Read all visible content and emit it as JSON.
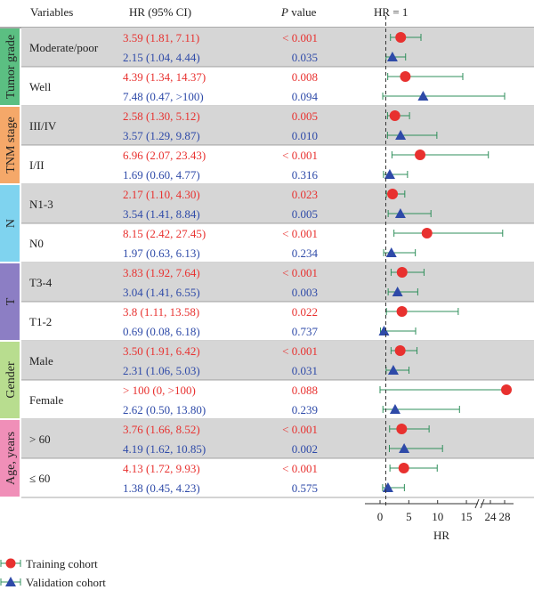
{
  "chart_data": {
    "type": "forest",
    "header": {
      "variables": "Variables",
      "hr": "HR (95% CI)",
      "p_prefix": "P",
      "p_suffix": " value",
      "ref": "HR = 1"
    },
    "x_axis": {
      "label": "HR",
      "ticks_left": [
        "0",
        "5",
        "10",
        "15"
      ],
      "ticks_right": [
        "24",
        "28"
      ],
      "segment_left": [
        0,
        17
      ],
      "segment_right": [
        22,
        30
      ],
      "reference_line": 1
    },
    "series": [
      {
        "name": "Training cohort",
        "color": "#e8312f",
        "marker": "circle"
      },
      {
        "name": "Validation cohort",
        "color": "#2e4aa8",
        "marker": "triangle"
      }
    ],
    "groups": [
      {
        "label": "Tumor grade",
        "color": "#5bbf82",
        "subgroups": [
          {
            "label": "Moderate/poor",
            "rows": [
              {
                "series": "Training cohort",
                "text": "3.59 (1.81, 7.11)",
                "p": "< 0.001",
                "hr": 3.59,
                "lo": 1.81,
                "hi": 7.11
              },
              {
                "series": "Validation cohort",
                "text": "2.15 (1.04, 4.44)",
                "p": "0.035",
                "hr": 2.15,
                "lo": 1.04,
                "hi": 4.44
              }
            ]
          },
          {
            "label": "Well",
            "rows": [
              {
                "series": "Training cohort",
                "text": "4.39 (1.34, 14.37)",
                "p": "0.008",
                "hr": 4.39,
                "lo": 1.34,
                "hi": 14.37
              },
              {
                "series": "Validation cohort",
                "text": "7.48 (0.47, >100)",
                "p": "0.094",
                "hr": 7.48,
                "lo": 0.47,
                "hi": 28
              }
            ]
          }
        ]
      },
      {
        "label": "TNM stage",
        "color": "#f5a869",
        "subgroups": [
          {
            "label": "III/IV",
            "rows": [
              {
                "series": "Training cohort",
                "text": "2.58 (1.30, 5.12)",
                "p": "0.005",
                "hr": 2.58,
                "lo": 1.3,
                "hi": 5.12
              },
              {
                "series": "Validation cohort",
                "text": "3.57 (1.29, 9.87)",
                "p": "0.010",
                "hr": 3.57,
                "lo": 1.29,
                "hi": 9.87
              }
            ]
          },
          {
            "label": "I/II",
            "rows": [
              {
                "series": "Training cohort",
                "text": "6.96 (2.07, 23.43)",
                "p": "< 0.001",
                "hr": 6.96,
                "lo": 2.07,
                "hi": 23.43
              },
              {
                "series": "Validation cohort",
                "text": "1.69 (0.60, 4.77)",
                "p": "0.316",
                "hr": 1.69,
                "lo": 0.6,
                "hi": 4.77
              }
            ]
          }
        ]
      },
      {
        "label": "N",
        "color": "#7fd3ef",
        "subgroups": [
          {
            "label": "N1-3",
            "rows": [
              {
                "series": "Training cohort",
                "text": "2.17 (1.10, 4.30)",
                "p": "0.023",
                "hr": 2.17,
                "lo": 1.1,
                "hi": 4.3
              },
              {
                "series": "Validation cohort",
                "text": "3.54 (1.41, 8.84)",
                "p": "0.005",
                "hr": 3.54,
                "lo": 1.41,
                "hi": 8.84
              }
            ]
          },
          {
            "label": "N0",
            "rows": [
              {
                "series": "Training cohort",
                "text": "8.15 (2.42, 27.45)",
                "p": "< 0.001",
                "hr": 8.15,
                "lo": 2.42,
                "hi": 27.45
              },
              {
                "series": "Validation cohort",
                "text": "1.97 (0.63, 6.13)",
                "p": "0.234",
                "hr": 1.97,
                "lo": 0.63,
                "hi": 6.13
              }
            ]
          }
        ]
      },
      {
        "label": "T",
        "color": "#8c7ec4",
        "subgroups": [
          {
            "label": "T3-4",
            "rows": [
              {
                "series": "Training cohort",
                "text": "3.83 (1.92, 7.64)",
                "p": "< 0.001",
                "hr": 3.83,
                "lo": 1.92,
                "hi": 7.64
              },
              {
                "series": "Validation cohort",
                "text": "3.04 (1.41, 6.55)",
                "p": "0.003",
                "hr": 3.04,
                "lo": 1.41,
                "hi": 6.55
              }
            ]
          },
          {
            "label": "T1-2",
            "rows": [
              {
                "series": "Training cohort",
                "text": "3.8 (1.11, 13.58)",
                "p": "0.022",
                "hr": 3.8,
                "lo": 1.11,
                "hi": 13.58
              },
              {
                "series": "Validation cohort",
                "text": "0.69 (0.08, 6.18)",
                "p": "0.737",
                "hr": 0.69,
                "lo": 0.08,
                "hi": 6.18
              }
            ]
          }
        ]
      },
      {
        "label": "Gender",
        "color": "#b8dd8f",
        "subgroups": [
          {
            "label": "Male",
            "rows": [
              {
                "series": "Training cohort",
                "text": "3.50 (1.91, 6.42)",
                "p": "< 0.001",
                "hr": 3.5,
                "lo": 1.91,
                "hi": 6.42
              },
              {
                "series": "Validation cohort",
                "text": "2.31 (1.06, 5.03)",
                "p": "0.031",
                "hr": 2.31,
                "lo": 1.06,
                "hi": 5.03
              }
            ]
          },
          {
            "label": "Female",
            "rows": [
              {
                "series": "Training cohort",
                "text": "> 100 (0, >100)",
                "p": "0.088",
                "hr": 28.5,
                "lo": 0,
                "hi": 28.5
              },
              {
                "series": "Validation cohort",
                "text": "2.62 (0.50, 13.80)",
                "p": "0.239",
                "hr": 2.62,
                "lo": 0.5,
                "hi": 13.8
              }
            ]
          }
        ]
      },
      {
        "label": "Age, years",
        "color": "#f08fb8",
        "subgroups": [
          {
            "label": "> 60",
            "rows": [
              {
                "series": "Training cohort",
                "text": "3.76 (1.66, 8.52)",
                "p": "< 0.001",
                "hr": 3.76,
                "lo": 1.66,
                "hi": 8.52
              },
              {
                "series": "Validation cohort",
                "text": "4.19 (1.62, 10.85)",
                "p": "0.002",
                "hr": 4.19,
                "lo": 1.62,
                "hi": 10.85
              }
            ]
          },
          {
            "label": "≤ 60",
            "rows": [
              {
                "series": "Training cohort",
                "text": "4.13 (1.72, 9.93)",
                "p": "< 0.001",
                "hr": 4.13,
                "lo": 1.72,
                "hi": 9.93
              },
              {
                "series": "Validation cohort",
                "text": "1.38 (0.45, 4.23)",
                "p": "0.575",
                "hr": 1.38,
                "lo": 0.45,
                "hi": 4.23
              }
            ]
          }
        ]
      }
    ]
  }
}
